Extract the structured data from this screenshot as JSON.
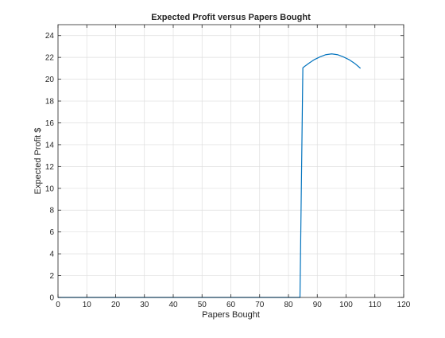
{
  "chart_data": {
    "type": "line",
    "title": "Expected Profit versus Papers Bought",
    "xlabel": "Papers Bought",
    "ylabel": "Expected Profit $",
    "xlim": [
      0,
      120
    ],
    "ylim": [
      0,
      25
    ],
    "xticks": [
      0,
      10,
      20,
      30,
      40,
      50,
      60,
      70,
      80,
      90,
      100,
      110,
      120
    ],
    "yticks": [
      0,
      2,
      4,
      6,
      8,
      10,
      12,
      14,
      16,
      18,
      20,
      22,
      24
    ],
    "grid": true,
    "line_color": "#0072BD",
    "series": [
      {
        "x": [
          0,
          84,
          85,
          87,
          89,
          91,
          93,
          95,
          97,
          99,
          101,
          103,
          105
        ],
        "y": [
          0,
          0,
          21.05,
          21.45,
          21.8,
          22.05,
          22.25,
          22.32,
          22.25,
          22.05,
          21.8,
          21.45,
          21.0
        ]
      }
    ]
  }
}
